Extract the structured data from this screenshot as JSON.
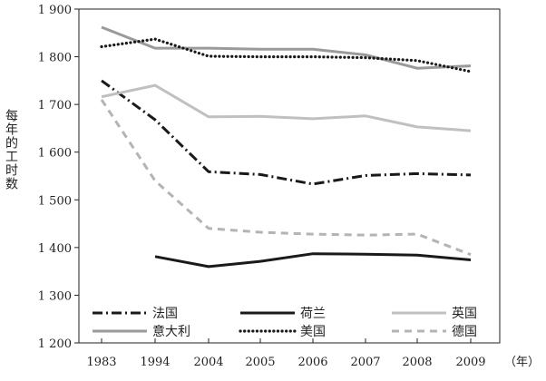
{
  "chart_data": {
    "type": "line",
    "ylabel": "每年的工时数",
    "xunit": "（年）",
    "categories": [
      "1983",
      "1994",
      "2004",
      "2005",
      "2006",
      "2007",
      "2008",
      "2009"
    ],
    "ylim": [
      1200,
      1900
    ],
    "yticks": [
      1200,
      1300,
      1400,
      1500,
      1600,
      1700,
      1800,
      1900
    ],
    "ytick_labels": [
      "1 200",
      "1 300",
      "1 400",
      "1 500",
      "1 600",
      "1 700",
      "1 800",
      "1 900"
    ],
    "grid": false,
    "legend_position": "bottom-inside",
    "series": [
      {
        "name": "法国",
        "values": [
          1750,
          1668,
          1559,
          1553,
          1533,
          1551,
          1555,
          1552
        ],
        "color": "#1a1a1a",
        "style": "dashdot"
      },
      {
        "name": "荷兰",
        "values": [
          null,
          1381,
          1360,
          1371,
          1387,
          1386,
          1384,
          1374
        ],
        "color": "#1a1a1a",
        "style": "solid"
      },
      {
        "name": "英国",
        "values": [
          1716,
          1740,
          1674,
          1675,
          1670,
          1676,
          1653,
          1645
        ],
        "color": "#c0c0c0",
        "style": "solid"
      },
      {
        "name": "意大利",
        "values": [
          1862,
          1818,
          1818,
          1816,
          1816,
          1804,
          1776,
          1781
        ],
        "color": "#9a9a9a",
        "style": "solid"
      },
      {
        "name": "美国",
        "values": [
          1821,
          1837,
          1801,
          1800,
          1800,
          1798,
          1792,
          1769
        ],
        "color": "#1a1a1a",
        "style": "dotted"
      },
      {
        "name": "德国",
        "values": [
          1710,
          1540,
          1440,
          1432,
          1428,
          1426,
          1428,
          1385
        ],
        "color": "#b4b4b4",
        "style": "dashed"
      }
    ]
  }
}
